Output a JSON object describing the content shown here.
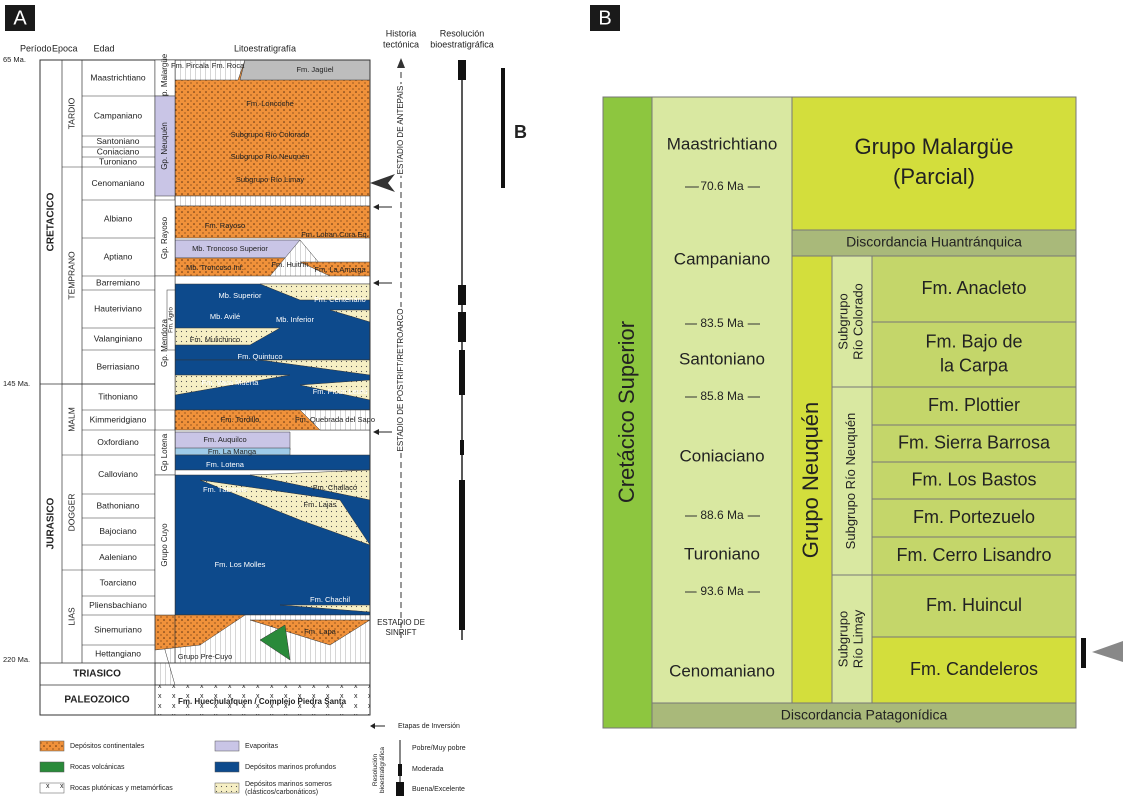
{
  "panel_a": {
    "label": "A",
    "headers": {
      "period": "Período",
      "epoch": "Epoca",
      "age": "Edad",
      "litho": "Litoestratigrafía",
      "tectonic": [
        "Historia",
        "tectónica"
      ],
      "resolution": [
        "Resolución",
        "bioestratigráfica"
      ]
    },
    "ages": [
      "65 Ma.",
      "145 Ma.",
      "220 Ma."
    ],
    "periods": [
      "CRETACICO",
      "JURASICO",
      "TRIASICO",
      "PALEOZOICO"
    ],
    "epochs": [
      "TARDIO",
      "TEMPRANO",
      "MALM",
      "DOGGER",
      "LIAS"
    ],
    "stages": [
      "Maastrichtiano",
      "Campaniano",
      "Santoniano",
      "Coniaciano",
      "Turoniano",
      "Cenomaniano",
      "Albiano",
      "Aptiano",
      "Barremiano",
      "Hauteriviano",
      "Valanginiano",
      "Berriasiano",
      "Tithoniano",
      "Kimmeridgiano",
      "Oxfordiano",
      "Calloviano",
      "Bathoniano",
      "Bajociano",
      "Aaleniano",
      "Toarciano",
      "Pliensbachiano",
      "Sinemuriano",
      "Hettangiano"
    ],
    "groups": [
      "Gp. Malargüe",
      "Gp. Neuquén",
      "Gp. Rayoso",
      "Gp. Mendoza",
      "Fm. Agrio",
      "Gp Lotena",
      "Grupo Cuyo"
    ],
    "formations": [
      "Fm. Pircala",
      "Fm. Roca",
      "Fm. Jagüel",
      "Fm. Loncoche",
      "Subgrupo Río Colorado",
      "Subgrupo Río Neuquén",
      "Subgrupo Río Limay",
      "Fm. Rayoso",
      "Fm. Lohan Cura Eq.",
      "Mb. Troncoso Superior",
      "Mb. Troncoso Inf.",
      "Fm. Huitrín",
      "Fm. La Amarga",
      "Mb. Superior",
      "Fm. Centenario",
      "Mb. Avilé",
      "Mb. Inferior",
      "Fm. Mulichinco",
      "Fm. Quintuco",
      "Fm. Vaca Muerta",
      "Fm. Picún Leufú",
      "Fm. Tordillo",
      "Fm. Quebrada del Sapo",
      "Fm. Auquilco",
      "Fm. La Manga",
      "Fm. Lotena",
      "Fm. Tábanos",
      "Fm. Challacó",
      "Fm. Lajas",
      "Fm. Los Molles",
      "Fm. Chachil",
      "Fm. Lapa",
      "Grupo Pre-Cuyo",
      "Fm. Huechulafquen / Complejo Piedra Santa"
    ],
    "tectonic_stages": [
      "ESTADIO DE ANTEPAIS",
      "ESTADIO DE POSTRIFT/RETROARCO",
      [
        "ESTADIO DE",
        "SINRIFT"
      ]
    ],
    "b_marker": "B",
    "legend": {
      "inversion": "Etapas de Inversión",
      "items": [
        "Depósitos continentales",
        "Rocas volcánicas",
        "Rocas plutónicas y metamórficas",
        "Evaporitas",
        "Depósitos marinos profundos",
        [
          "Depósitos marinos someros",
          "(clásticos/carbonáticos)"
        ]
      ],
      "resolution_title": [
        "Resolución",
        "bioestratigráfica"
      ],
      "resolution_levels": [
        "Pobre/Muy pobre",
        "Moderada",
        "Buena/Excelente"
      ]
    }
  },
  "panel_b": {
    "label": "B",
    "period": "Cretácico Superior",
    "stages": [
      "Maastrichtiano",
      "Campaniano",
      "Santoniano",
      "Coniaciano",
      "Turoniano",
      "Cenomaniano"
    ],
    "ages": [
      "70.6 Ma",
      "83.5 Ma",
      "85.8 Ma",
      "88.6 Ma",
      "93.6 Ma"
    ],
    "malargue": [
      "Grupo Malargüe",
      "(Parcial)"
    ],
    "unconformities": [
      "Discordancia Huantránquica",
      "Discordancia Patagonídica"
    ],
    "neuquen": "Grupo Neuquén",
    "subgroups": [
      [
        "Subgrupo",
        "Río Colorado"
      ],
      [
        "Subgrupo Río Neuquén"
      ],
      [
        "Subgrupo",
        "Río Limay"
      ]
    ],
    "formations": [
      [
        "Fm. Anacleto"
      ],
      [
        "Fm. Bajo de",
        "la Carpa"
      ],
      [
        "Fm. Plottier"
      ],
      [
        "Fm. Sierra Barrosa"
      ],
      [
        "Fm. Los Bastos"
      ],
      [
        "Fm. Portezuelo"
      ],
      [
        "Fm. Cerro Lisandro"
      ],
      [
        "Fm. Huincul"
      ],
      [
        "Fm. Candeleros"
      ]
    ]
  }
}
